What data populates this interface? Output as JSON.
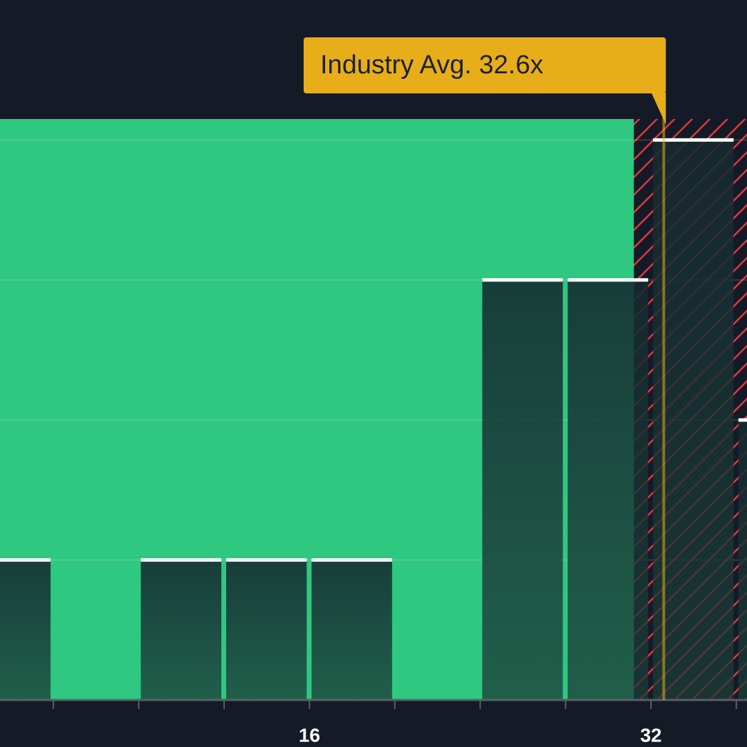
{
  "chart_data": {
    "type": "histogram",
    "bins": [
      0,
      4,
      8,
      12,
      16,
      20,
      24,
      28,
      32,
      36,
      40
    ],
    "values": [
      1,
      0,
      1,
      1,
      1,
      0,
      3,
      3,
      4,
      2
    ],
    "xlim": [
      1.5,
      36.5
    ],
    "ylim": [
      0,
      5
    ],
    "xticks": [
      {
        "value": 4,
        "label": null
      },
      {
        "value": 8,
        "label": null
      },
      {
        "value": 12,
        "label": null
      },
      16,
      {
        "value": 20,
        "label": null
      },
      {
        "value": 24,
        "label": null
      },
      {
        "value": 28,
        "label": null
      },
      32,
      {
        "value": 36,
        "label": null
      }
    ],
    "yticks": [
      1,
      2,
      3,
      4
    ],
    "grid": true,
    "regions": [
      {
        "from": 1.5,
        "to": 31.2,
        "top": 4.15,
        "color": "#2ec880",
        "style": "solid"
      },
      {
        "from": 31.2,
        "to": 36.5,
        "top": 4.15,
        "color": "#e0393e",
        "style": "hatch"
      }
    ],
    "bar_color": "#1c3d3c",
    "annotations": [
      {
        "x": 32.6,
        "label": "Industry Avg. 32.6x",
        "color": "#e8ae1a"
      }
    ]
  }
}
